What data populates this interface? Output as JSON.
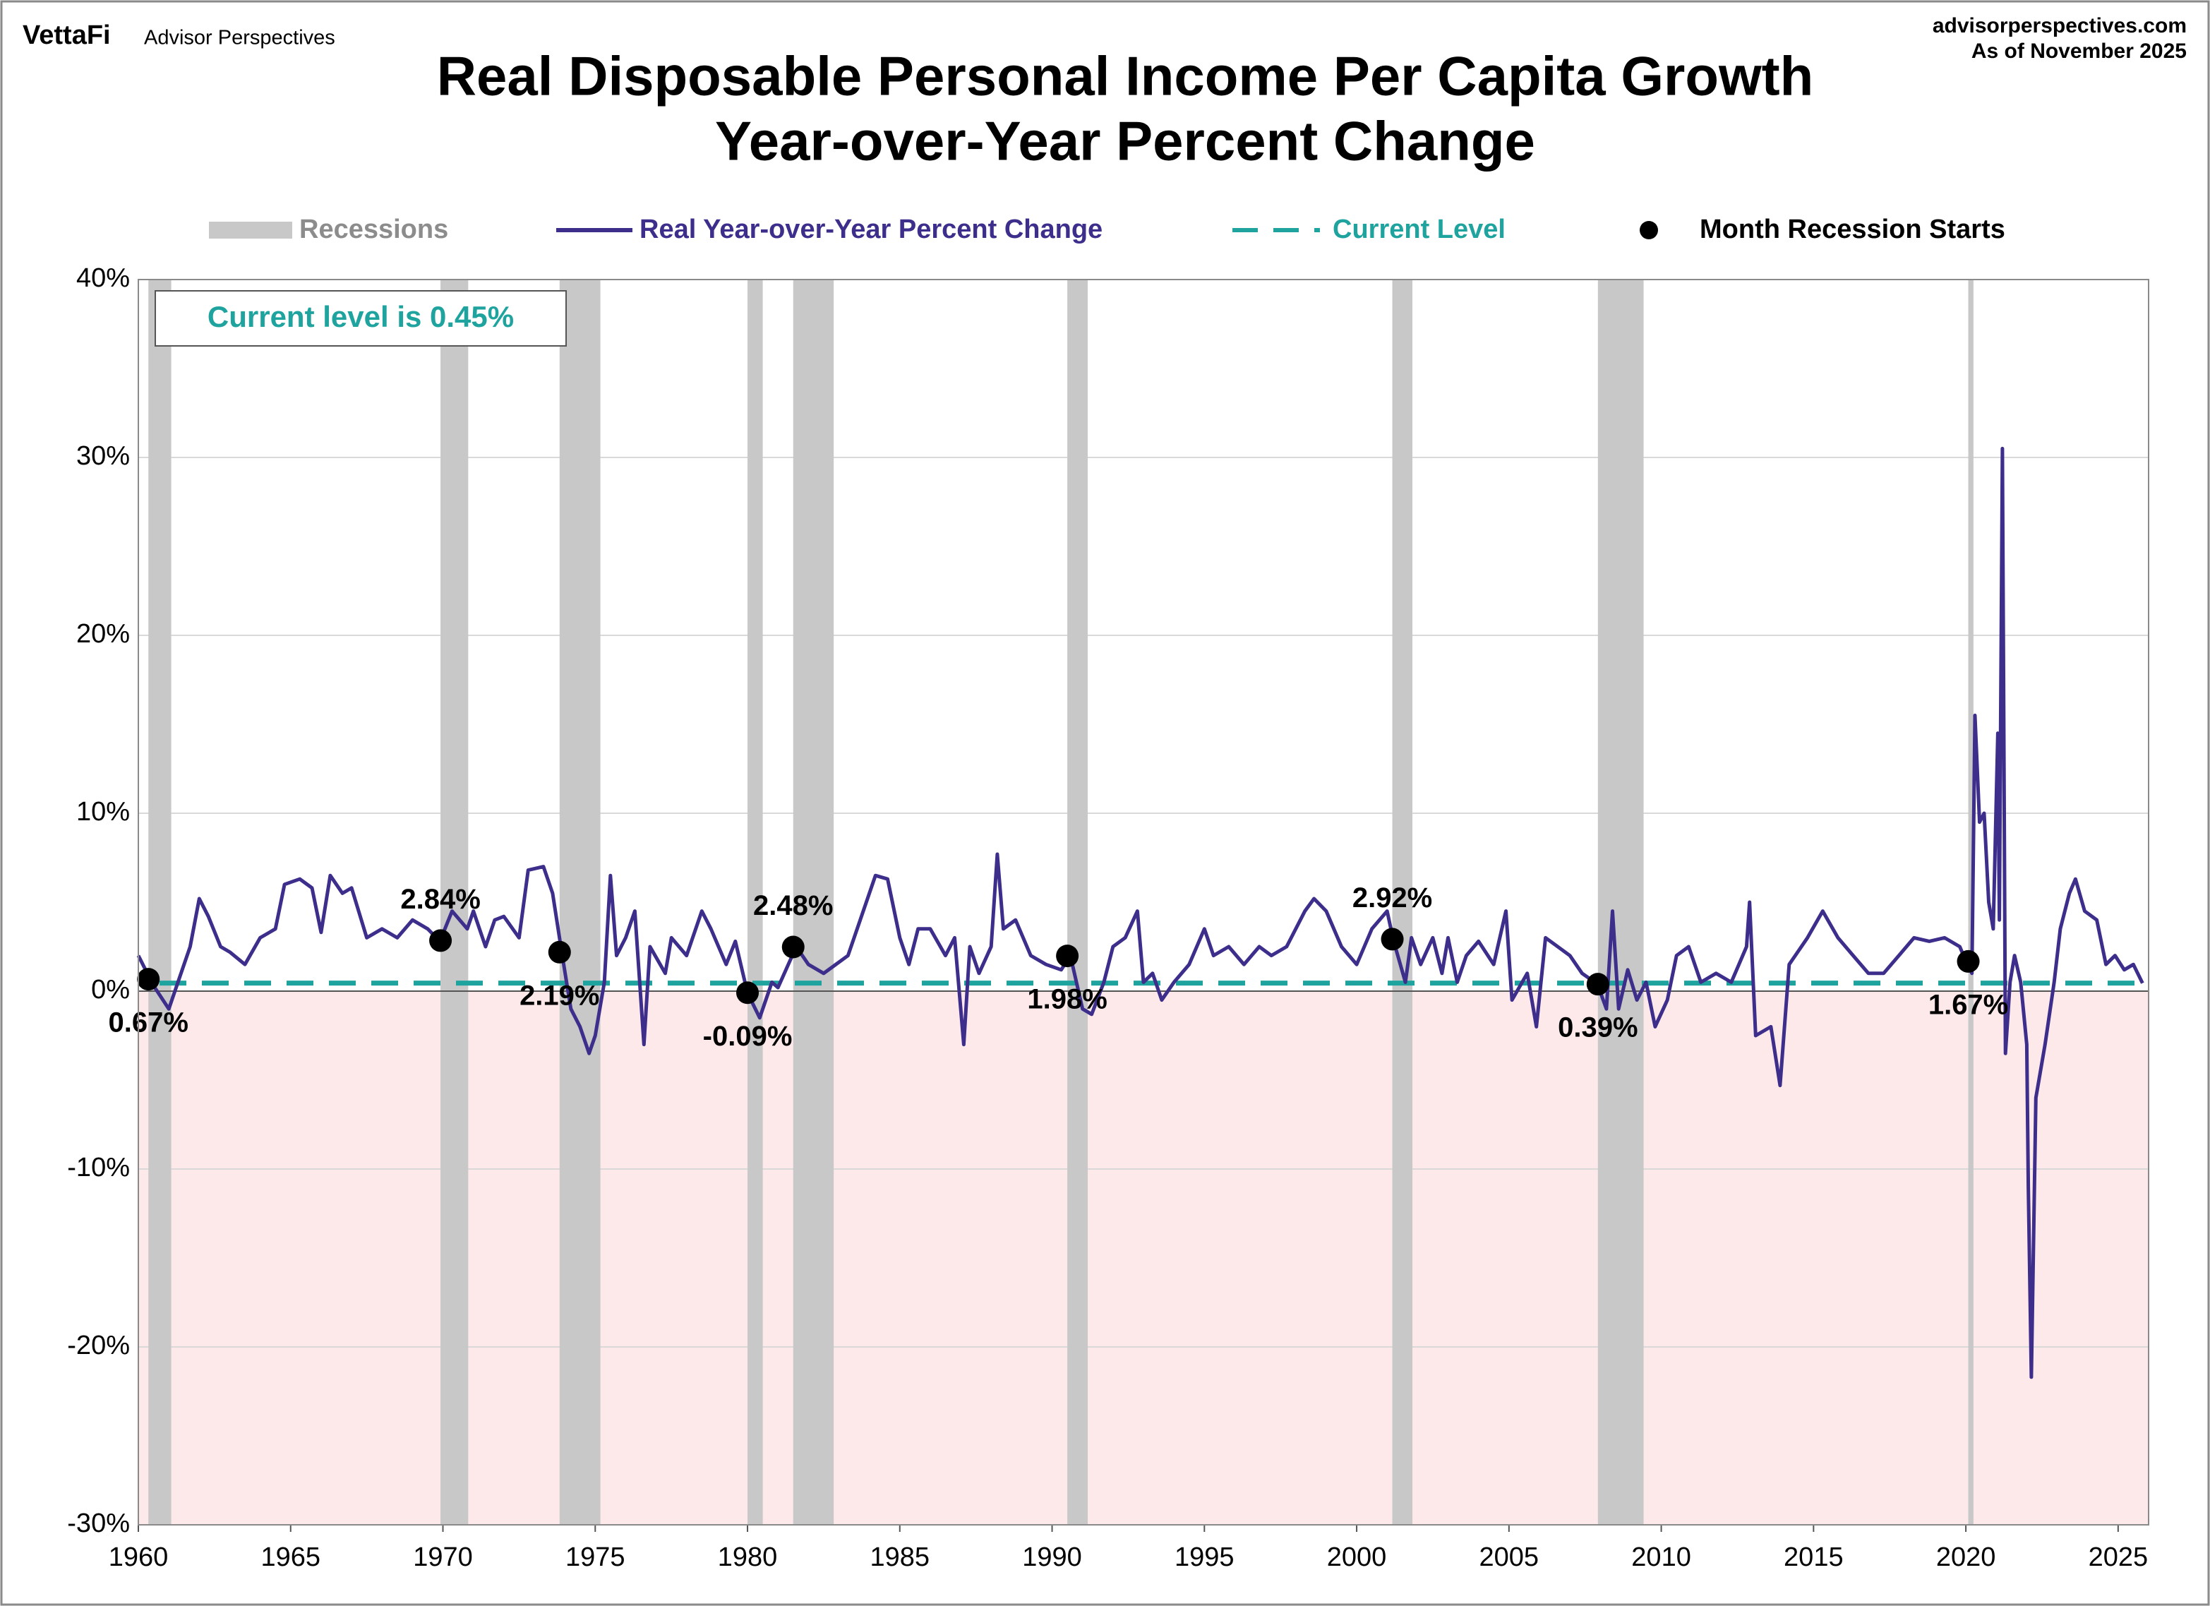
{
  "chart_data": {
    "type": "line",
    "brand": "VettaFi",
    "brand_sub": "Advisor Perspectives",
    "source": "advisorperspectives.com",
    "as_of": "As of November 2025",
    "title": "Real Disposable Personal Income Per Capita Growth",
    "subtitle": "Year-over-Year Percent Change",
    "xlim": [
      1960,
      2026
    ],
    "xticks": [
      1960,
      1965,
      1970,
      1975,
      1980,
      1985,
      1990,
      1995,
      2000,
      2005,
      2010,
      2015,
      2020,
      2025
    ],
    "ylim": [
      -30,
      40
    ],
    "yticks": [
      {
        "value": -30,
        "label": "-30%"
      },
      {
        "value": -20,
        "label": "-20%"
      },
      {
        "value": -10,
        "label": "-10%"
      },
      {
        "value": 0,
        "label": "0%"
      },
      {
        "value": 10,
        "label": "10%"
      },
      {
        "value": 20,
        "label": "20%"
      },
      {
        "value": 30,
        "label": "30%"
      },
      {
        "value": 40,
        "label": "40%"
      }
    ],
    "grid": true,
    "negative_fill": "#fde9ea",
    "recessions": {
      "name": "Recessions",
      "color": "#c8c8c8",
      "bands": [
        [
          1960.33,
          1961.08
        ],
        [
          1969.92,
          1970.83
        ],
        [
          1973.83,
          1975.17
        ],
        [
          1980.0,
          1980.5
        ],
        [
          1981.5,
          1982.83
        ],
        [
          1990.5,
          1991.17
        ],
        [
          2001.17,
          2001.83
        ],
        [
          2007.92,
          2009.42
        ],
        [
          2020.08,
          2020.25
        ]
      ]
    },
    "current_level": {
      "name": "Current Level",
      "value": 0.45,
      "color": "#1fa39e",
      "annotation": "Current level is 0.45%"
    },
    "recession_starts": {
      "name": "Month Recession Starts",
      "color": "#000000",
      "x": [
        1960.33,
        1969.92,
        1973.83,
        1980.0,
        1981.5,
        1990.5,
        2001.17,
        2007.92,
        2020.08
      ],
      "values": [
        0.67,
        2.84,
        2.19,
        -0.09,
        2.48,
        1.98,
        2.92,
        0.39,
        1.67
      ],
      "value_labels": [
        "0.67%",
        "2.84%",
        "2.19%",
        "-0.09%",
        "2.48%",
        "1.98%",
        "2.92%",
        "0.39%",
        "1.67%"
      ]
    },
    "series": [
      {
        "name": "Real Year-over-Year Percent Change",
        "color": "#3d2e8c",
        "x": [
          1960.0,
          1960.5,
          1961.0,
          1961.3,
          1961.7,
          1962.0,
          1962.3,
          1962.7,
          1963.0,
          1963.5,
          1964.0,
          1964.5,
          1964.8,
          1965.3,
          1965.7,
          1966.0,
          1966.3,
          1966.7,
          1967.0,
          1967.5,
          1968.0,
          1968.5,
          1969.0,
          1969.5,
          1969.9,
          1970.3,
          1970.8,
          1971.0,
          1971.4,
          1971.7,
          1972.0,
          1972.5,
          1972.8,
          1973.3,
          1973.6,
          1973.9,
          1974.2,
          1974.5,
          1974.8,
          1975.0,
          1975.3,
          1975.5,
          1975.7,
          1976.0,
          1976.3,
          1976.6,
          1976.8,
          1977.3,
          1977.5,
          1978.0,
          1978.5,
          1978.8,
          1979.3,
          1979.6,
          1980.0,
          1980.4,
          1980.8,
          1981.0,
          1981.6,
          1982.0,
          1982.5,
          1982.9,
          1983.3,
          1983.7,
          1984.2,
          1984.6,
          1985.0,
          1985.3,
          1985.6,
          1986.0,
          1986.5,
          1986.8,
          1987.1,
          1987.3,
          1987.6,
          1988.0,
          1988.2,
          1988.4,
          1988.8,
          1989.3,
          1989.8,
          1990.3,
          1990.6,
          1991.0,
          1991.3,
          1991.7,
          1992.0,
          1992.4,
          1992.8,
          1993.0,
          1993.3,
          1993.6,
          1994.0,
          1994.5,
          1995.0,
          1995.3,
          1995.8,
          1996.3,
          1996.8,
          1997.2,
          1997.7,
          1998.3,
          1998.6,
          1999.0,
          1999.5,
          2000.0,
          2000.5,
          2001.0,
          2001.2,
          2001.6,
          2001.8,
          2002.1,
          2002.5,
          2002.8,
          2003.0,
          2003.3,
          2003.6,
          2004.0,
          2004.5,
          2004.9,
          2005.1,
          2005.6,
          2005.9,
          2006.2,
          2006.6,
          2007.0,
          2007.4,
          2007.9,
          2008.2,
          2008.4,
          2008.6,
          2008.9,
          2009.2,
          2009.5,
          2009.8,
          2010.2,
          2010.5,
          2010.9,
          2011.3,
          2011.8,
          2012.3,
          2012.8,
          2012.9,
          2013.1,
          2013.6,
          2013.9,
          2014.2,
          2014.8,
          2015.3,
          2015.8,
          2016.3,
          2016.8,
          2017.3,
          2017.8,
          2018.3,
          2018.8,
          2019.3,
          2019.8,
          2020.0,
          2020.2,
          2020.3,
          2020.45,
          2020.6,
          2020.75,
          2020.9,
          2021.05,
          2021.1,
          2021.2,
          2021.3,
          2021.45,
          2021.6,
          2021.8,
          2022.0,
          2022.05,
          2022.15,
          2022.3,
          2022.6,
          2022.9,
          2023.1,
          2023.4,
          2023.6,
          2023.9,
          2024.3,
          2024.6,
          2024.9,
          2025.2,
          2025.5,
          2025.8
        ],
        "values": [
          2.0,
          0.3,
          -1.0,
          0.5,
          2.5,
          5.2,
          4.2,
          2.5,
          2.2,
          1.5,
          3.0,
          3.5,
          6.0,
          6.3,
          5.8,
          3.3,
          6.5,
          5.5,
          5.8,
          3.0,
          3.5,
          3.0,
          4.0,
          3.5,
          2.8,
          4.5,
          3.5,
          4.5,
          2.5,
          4.0,
          4.2,
          3.0,
          6.8,
          7.0,
          5.5,
          2.2,
          -1.0,
          -2.0,
          -3.5,
          -2.5,
          0.5,
          6.5,
          2.0,
          3.0,
          4.5,
          -3.0,
          2.5,
          1.0,
          3.0,
          2.0,
          4.5,
          3.5,
          1.5,
          2.8,
          -0.1,
          -1.5,
          0.5,
          0.2,
          2.5,
          1.5,
          1.0,
          1.5,
          2.0,
          4.0,
          6.5,
          6.3,
          3.0,
          1.5,
          3.5,
          3.5,
          2.0,
          3.0,
          -3.0,
          2.5,
          1.0,
          2.5,
          7.7,
          3.5,
          4.0,
          2.0,
          1.5,
          1.2,
          2.0,
          -1.0,
          -1.3,
          0.5,
          2.5,
          3.0,
          4.5,
          0.5,
          1.0,
          -0.5,
          0.5,
          1.5,
          3.5,
          2.0,
          2.5,
          1.5,
          2.5,
          2.0,
          2.5,
          4.5,
          5.2,
          4.5,
          2.5,
          1.5,
          3.5,
          4.5,
          2.9,
          0.5,
          3.0,
          1.5,
          3.0,
          1.0,
          3.0,
          0.5,
          2.0,
          2.8,
          1.5,
          4.5,
          -0.5,
          1.0,
          -2.0,
          3.0,
          2.5,
          2.0,
          1.0,
          0.4,
          -1.0,
          4.5,
          -1.0,
          1.2,
          -0.5,
          0.5,
          -2.0,
          -0.5,
          2.0,
          2.5,
          0.5,
          1.0,
          0.5,
          2.5,
          5.0,
          -2.5,
          -2.0,
          -5.3,
          1.5,
          3.0,
          4.5,
          3.0,
          2.0,
          1.0,
          1.0,
          2.0,
          3.0,
          2.8,
          3.0,
          2.5,
          1.7,
          1.0,
          15.5,
          9.5,
          10.0,
          5.0,
          3.5,
          14.5,
          4.0,
          30.5,
          -3.5,
          0.5,
          2.0,
          0.5,
          -3.0,
          -11.0,
          -21.7,
          -6.0,
          -3.0,
          0.5,
          3.5,
          5.5,
          6.3,
          4.5,
          4.0,
          1.5,
          2.0,
          1.2,
          1.5,
          0.45
        ]
      }
    ]
  }
}
